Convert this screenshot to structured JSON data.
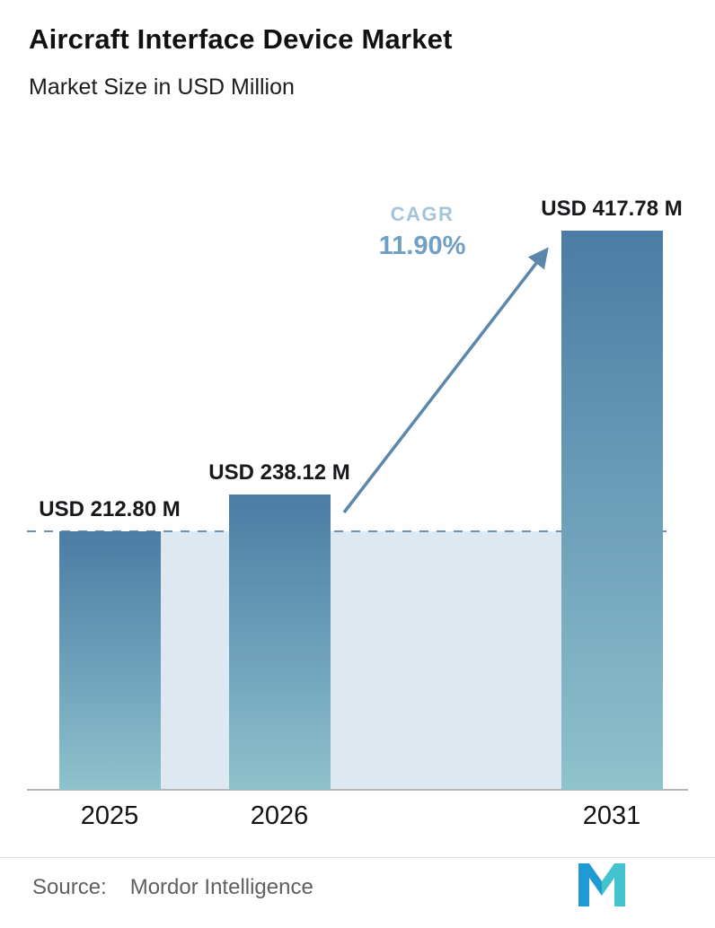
{
  "header": {
    "title": "Aircraft Interface Device Market",
    "subtitle": "Market Size in USD Million"
  },
  "chart_data": {
    "type": "bar",
    "categories": [
      "2025",
      "2026",
      "2031"
    ],
    "values": [
      212.8,
      238.12,
      417.78
    ],
    "value_labels": [
      "USD 212.80 M",
      "USD 238.12 M",
      "USD 417.78 M"
    ],
    "title": "Aircraft Interface Device Market",
    "ylabel": "Market Size in USD Million",
    "xlabel": "",
    "cagr": {
      "label": "CAGR",
      "value": "11.90%"
    },
    "annotations": [
      "dashed reference line at 2025 level (USD 212.80 M)",
      "growth arrow from 2026 bar to 2031 bar"
    ],
    "legend": "none",
    "grid": "off",
    "colors": {
      "bar_top": "#4a7ca5",
      "bar_bottom": "#8ec2cc",
      "band": "#dde8f1",
      "dashed_line": "#6b93b4",
      "arrow": "#5b87ad",
      "cagr_label": "#a3c4d9",
      "cagr_value": "#6fa0c4"
    }
  },
  "footer": {
    "source_label": "Source:",
    "source_value": "Mordor Intelligence",
    "logo": "mordor-intelligence-logo"
  }
}
